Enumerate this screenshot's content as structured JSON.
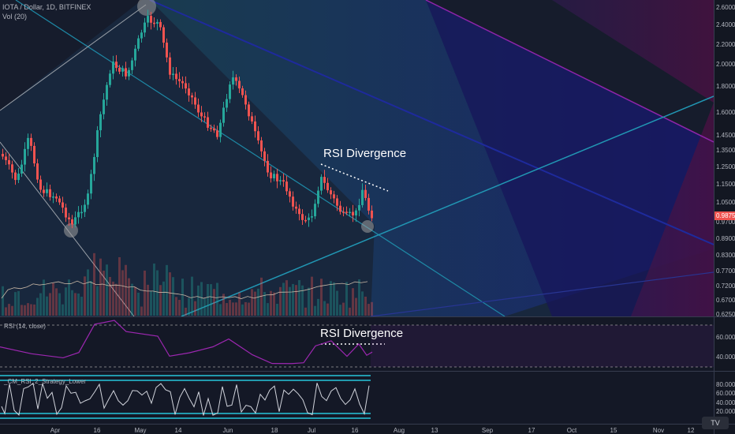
{
  "header": {
    "symbol": "IOTA / Dollar, 1D, BITFINEX",
    "volume": "Vol (20)"
  },
  "annotations": {
    "price_divergence": "RSI Divergence",
    "rsi_divergence": "RSI Divergence"
  },
  "panes": {
    "rsi": "RSI (14, close)",
    "strategy": "_CM_RSI_2_Strategy_Lower"
  },
  "price_axis": {
    "ticks": [
      "2.6000",
      "2.4000",
      "2.2000",
      "2.0000",
      "1.8000",
      "1.6000",
      "1.4500",
      "1.3500",
      "1.2500",
      "1.1500",
      "1.0500",
      "0.9700",
      "0.8900",
      "0.8300",
      "0.7700",
      "0.7200",
      "0.6700",
      "0.6250"
    ],
    "last_price": "0.9875"
  },
  "rsi_axis": {
    "ticks": [
      "60.0000",
      "40.0000"
    ]
  },
  "strategy_axis": {
    "ticks": [
      "80.0000",
      "60.0000",
      "40.0000",
      "20.0000"
    ]
  },
  "time_axis": {
    "ticks": [
      "Apr",
      "16",
      "May",
      "14",
      "Jun",
      "18",
      "Jul",
      "16",
      "Aug",
      "13",
      "Sep",
      "17",
      "Oct",
      "15",
      "Nov",
      "12"
    ]
  },
  "colors": {
    "background": "#131722",
    "up_candle": "#26a69a",
    "down_candle": "#ef5350",
    "rsi_line": "#9c27b0",
    "strategy_line": "#d1d4dc",
    "strategy_bands": "#26c6da",
    "channel_blue": "#1e2a9c",
    "channel_purple": "#8e24aa",
    "trendline": "#1e88a5",
    "last_price_badge": "#ef5350"
  },
  "logo": {
    "icon": "tradingview-logo"
  }
}
